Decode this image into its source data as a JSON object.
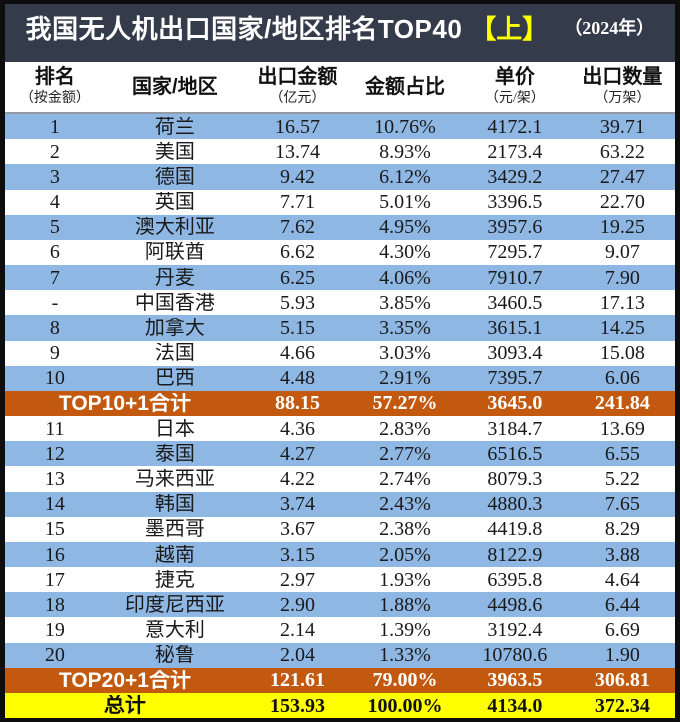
{
  "title": {
    "main": "我国无人机出口国家/地区排名TOP40",
    "part": "【上】",
    "year": "（2024年）"
  },
  "columns": [
    {
      "label": "排名",
      "sub": "（按金额）"
    },
    {
      "label": "国家/地区",
      "sub": ""
    },
    {
      "label": "出口金额",
      "sub": "（亿元）"
    },
    {
      "label": "金额占比",
      "sub": ""
    },
    {
      "label": "单价",
      "sub": "（元/架）"
    },
    {
      "label": "出口数量",
      "sub": "（万架）"
    }
  ],
  "rows": [
    {
      "type": "data",
      "rank": "1",
      "country": "荷兰",
      "amount": "16.57",
      "share": "10.76%",
      "price": "4172.1",
      "qty": "39.71"
    },
    {
      "type": "data",
      "rank": "2",
      "country": "美国",
      "amount": "13.74",
      "share": "8.93%",
      "price": "2173.4",
      "qty": "63.22"
    },
    {
      "type": "data",
      "rank": "3",
      "country": "德国",
      "amount": "9.42",
      "share": "6.12%",
      "price": "3429.2",
      "qty": "27.47"
    },
    {
      "type": "data",
      "rank": "4",
      "country": "英国",
      "amount": "7.71",
      "share": "5.01%",
      "price": "3396.5",
      "qty": "22.70"
    },
    {
      "type": "data",
      "rank": "5",
      "country": "澳大利亚",
      "amount": "7.62",
      "share": "4.95%",
      "price": "3957.6",
      "qty": "19.25"
    },
    {
      "type": "data",
      "rank": "6",
      "country": "阿联酋",
      "amount": "6.62",
      "share": "4.30%",
      "price": "7295.7",
      "qty": "9.07"
    },
    {
      "type": "data",
      "rank": "7",
      "country": "丹麦",
      "amount": "6.25",
      "share": "4.06%",
      "price": "7910.7",
      "qty": "7.90"
    },
    {
      "type": "data",
      "rank": "-",
      "country": "中国香港",
      "amount": "5.93",
      "share": "3.85%",
      "price": "3460.5",
      "qty": "17.13"
    },
    {
      "type": "data",
      "rank": "8",
      "country": "加拿大",
      "amount": "5.15",
      "share": "3.35%",
      "price": "3615.1",
      "qty": "14.25"
    },
    {
      "type": "data",
      "rank": "9",
      "country": "法国",
      "amount": "4.66",
      "share": "3.03%",
      "price": "3093.4",
      "qty": "15.08"
    },
    {
      "type": "data",
      "rank": "10",
      "country": "巴西",
      "amount": "4.48",
      "share": "2.91%",
      "price": "7395.7",
      "qty": "6.06"
    },
    {
      "type": "subtotal",
      "label": "TOP10+1合计",
      "amount": "88.15",
      "share": "57.27%",
      "price": "3645.0",
      "qty": "241.84"
    },
    {
      "type": "data",
      "rank": "11",
      "country": "日本",
      "amount": "4.36",
      "share": "2.83%",
      "price": "3184.7",
      "qty": "13.69"
    },
    {
      "type": "data",
      "rank": "12",
      "country": "泰国",
      "amount": "4.27",
      "share": "2.77%",
      "price": "6516.5",
      "qty": "6.55"
    },
    {
      "type": "data",
      "rank": "13",
      "country": "马来西亚",
      "amount": "4.22",
      "share": "2.74%",
      "price": "8079.3",
      "qty": "5.22"
    },
    {
      "type": "data",
      "rank": "14",
      "country": "韩国",
      "amount": "3.74",
      "share": "2.43%",
      "price": "4880.3",
      "qty": "7.65"
    },
    {
      "type": "data",
      "rank": "15",
      "country": "墨西哥",
      "amount": "3.67",
      "share": "2.38%",
      "price": "4419.8",
      "qty": "8.29"
    },
    {
      "type": "data",
      "rank": "16",
      "country": "越南",
      "amount": "3.15",
      "share": "2.05%",
      "price": "8122.9",
      "qty": "3.88"
    },
    {
      "type": "data",
      "rank": "17",
      "country": "捷克",
      "amount": "2.97",
      "share": "1.93%",
      "price": "6395.8",
      "qty": "4.64"
    },
    {
      "type": "data",
      "rank": "18",
      "country": "印度尼西亚",
      "amount": "2.90",
      "share": "1.88%",
      "price": "4498.6",
      "qty": "6.44"
    },
    {
      "type": "data",
      "rank": "19",
      "country": "意大利",
      "amount": "2.14",
      "share": "1.39%",
      "price": "3192.4",
      "qty": "6.69"
    },
    {
      "type": "data",
      "rank": "20",
      "country": "秘鲁",
      "amount": "2.04",
      "share": "1.33%",
      "price": "10780.6",
      "qty": "1.90"
    },
    {
      "type": "subtotal",
      "label": "TOP20+1合计",
      "amount": "121.61",
      "share": "79.00%",
      "price": "3963.5",
      "qty": "306.81"
    },
    {
      "type": "total",
      "label": "总计",
      "amount": "153.93",
      "share": "100.00%",
      "price": "4134.0",
      "qty": "372.34"
    }
  ],
  "colors": {
    "title_bar": "#343B4A",
    "highlight": "#FFFF00",
    "row_blue": "#8FB7E4",
    "row_subtotal": "#C2590F",
    "row_total": "#FFFF00",
    "text": "#1A1A1A"
  },
  "chart_data": {
    "type": "table",
    "title": "我国无人机出口国家/地区排名TOP40【上】（2024年）",
    "columns": [
      "排名（按金额）",
      "国家/地区",
      "出口金额（亿元）",
      "金额占比",
      "单价（元/架）",
      "出口数量（万架）"
    ],
    "rows": [
      [
        "1",
        "荷兰",
        16.57,
        "10.76%",
        4172.1,
        39.71
      ],
      [
        "2",
        "美国",
        13.74,
        "8.93%",
        2173.4,
        63.22
      ],
      [
        "3",
        "德国",
        9.42,
        "6.12%",
        3429.2,
        27.47
      ],
      [
        "4",
        "英国",
        7.71,
        "5.01%",
        3396.5,
        22.7
      ],
      [
        "5",
        "澳大利亚",
        7.62,
        "4.95%",
        3957.6,
        19.25
      ],
      [
        "6",
        "阿联酋",
        6.62,
        "4.30%",
        7295.7,
        9.07
      ],
      [
        "7",
        "丹麦",
        6.25,
        "4.06%",
        7910.7,
        7.9
      ],
      [
        "-",
        "中国香港",
        5.93,
        "3.85%",
        3460.5,
        17.13
      ],
      [
        "8",
        "加拿大",
        5.15,
        "3.35%",
        3615.1,
        14.25
      ],
      [
        "9",
        "法国",
        4.66,
        "3.03%",
        3093.4,
        15.08
      ],
      [
        "10",
        "巴西",
        4.48,
        "2.91%",
        7395.7,
        6.06
      ],
      [
        "",
        "TOP10+1合计",
        88.15,
        "57.27%",
        3645.0,
        241.84
      ],
      [
        "11",
        "日本",
        4.36,
        "2.83%",
        3184.7,
        13.69
      ],
      [
        "12",
        "泰国",
        4.27,
        "2.77%",
        6516.5,
        6.55
      ],
      [
        "13",
        "马来西亚",
        4.22,
        "2.74%",
        8079.3,
        5.22
      ],
      [
        "14",
        "韩国",
        3.74,
        "2.43%",
        4880.3,
        7.65
      ],
      [
        "15",
        "墨西哥",
        3.67,
        "2.38%",
        4419.8,
        8.29
      ],
      [
        "16",
        "越南",
        3.15,
        "2.05%",
        8122.9,
        3.88
      ],
      [
        "17",
        "捷克",
        2.97,
        "1.93%",
        6395.8,
        4.64
      ],
      [
        "18",
        "印度尼西亚",
        2.9,
        "1.88%",
        4498.6,
        6.44
      ],
      [
        "19",
        "意大利",
        2.14,
        "1.39%",
        3192.4,
        6.69
      ],
      [
        "20",
        "秘鲁",
        2.04,
        "1.33%",
        10780.6,
        1.9
      ],
      [
        "",
        "TOP20+1合计",
        121.61,
        "79.00%",
        3963.5,
        306.81
      ],
      [
        "",
        "总计",
        153.93,
        "100.00%",
        4134.0,
        372.34
      ]
    ]
  }
}
